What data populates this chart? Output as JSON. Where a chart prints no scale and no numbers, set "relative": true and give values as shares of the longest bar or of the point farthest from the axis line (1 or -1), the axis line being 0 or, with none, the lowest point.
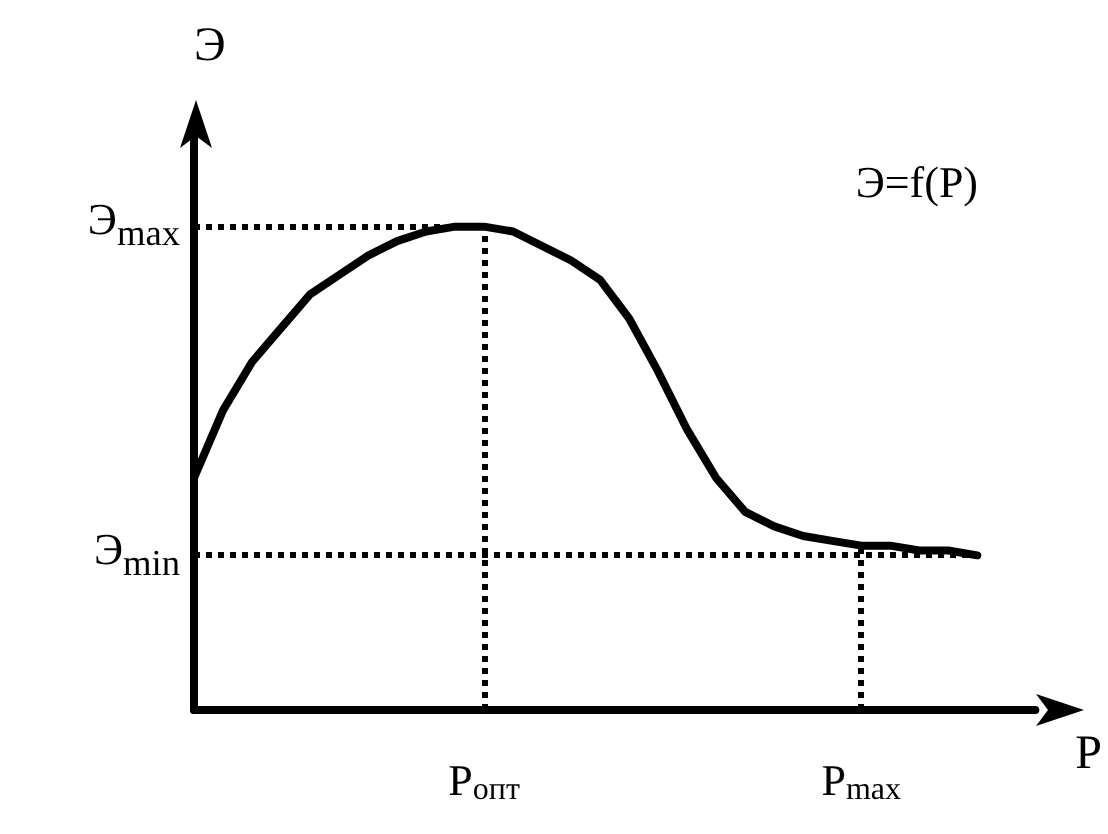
{
  "chart_data": {
    "type": "line",
    "relative": true,
    "color": "#000000",
    "xlabel": "P",
    "ylabel": "Э",
    "annotations": [
      "Э=f(P)"
    ],
    "categories": [
      null,
      null,
      null,
      null,
      null,
      null,
      null,
      null,
      null,
      null,
      "P$_{опт}$",
      null,
      null,
      null,
      null,
      null,
      null,
      null,
      null,
      null,
      null,
      null,
      null,
      "P$_{max}$",
      null,
      null,
      null,
      null,
      null,
      null
    ],
    "values": [
      0.48,
      0.62,
      0.72,
      0.79,
      0.86,
      0.9,
      0.94,
      0.97,
      0.99,
      1.0,
      1.0,
      0.99,
      0.96,
      0.93,
      0.89,
      0.81,
      0.7,
      0.58,
      0.48,
      0.41,
      0.38,
      0.36,
      0.35,
      0.34,
      0.34,
      0.33,
      0.33,
      0.32,
      null,
      null
    ],
    "ref_lines": [
      {
        "axis": "y",
        "value": 1.0,
        "label": "Э$_{max}$",
        "line_style": "dotted"
      },
      {
        "axis": "y",
        "value": 0.32,
        "label": "Э$_{min}$",
        "line_style": "dotted"
      },
      {
        "axis": "x",
        "value": "P$_{опт}$",
        "line_style": "dotted"
      },
      {
        "axis": "x",
        "value": "P$_{max}$",
        "line_style": "dotted"
      }
    ],
    "grid": false,
    "marker": "none",
    "line_style": "solid"
  }
}
